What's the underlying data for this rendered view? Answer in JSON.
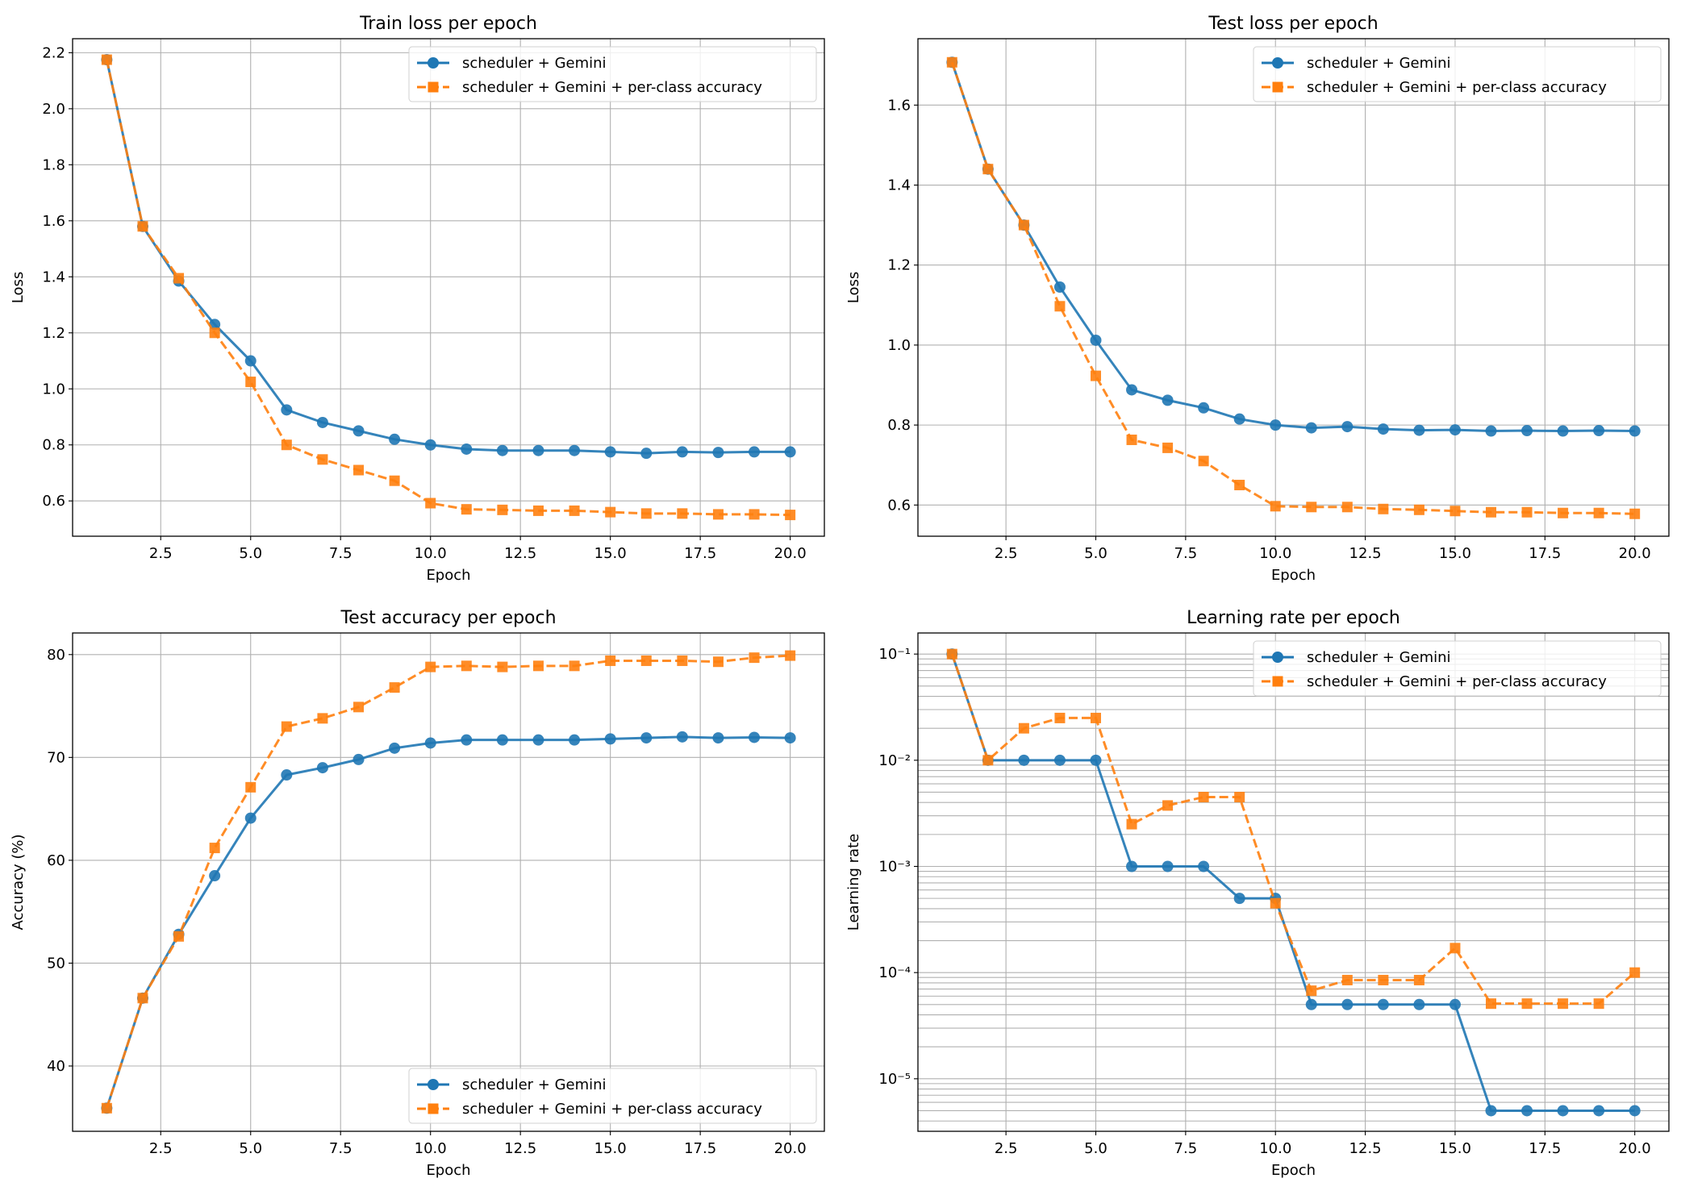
{
  "colors": {
    "series_1": "#1f77b4",
    "series_2": "#ff7f0e",
    "grid": "#b0b0b0"
  },
  "legend_labels": [
    "scheduler + Gemini",
    "scheduler + Gemini + per-class accuracy"
  ],
  "chart_data": [
    {
      "type": "line",
      "title": "Train loss per epoch",
      "xlabel": "Epoch",
      "ylabel": "Loss",
      "xlim": [
        0.05,
        20.95
      ],
      "ylim": [
        0.474,
        2.25
      ],
      "yscale": "linear",
      "xticks": [
        2.5,
        5.0,
        7.5,
        10.0,
        12.5,
        15.0,
        17.5,
        20.0
      ],
      "xtick_labels": [
        "2.5",
        "5.0",
        "7.5",
        "10.0",
        "12.5",
        "15.0",
        "17.5",
        "20.0"
      ],
      "yticks": [
        0.6,
        0.8,
        1.0,
        1.2,
        1.4,
        1.6,
        1.8,
        2.0,
        2.2
      ],
      "ytick_labels": [
        "0.6",
        "0.8",
        "1.0",
        "1.2",
        "1.4",
        "1.6",
        "1.8",
        "2.0",
        "2.2"
      ],
      "grid": true,
      "legend": "top-right",
      "x": [
        1,
        2,
        3,
        4,
        5,
        6,
        7,
        8,
        9,
        10,
        11,
        12,
        13,
        14,
        15,
        16,
        17,
        18,
        19,
        20
      ],
      "series": [
        {
          "name": "scheduler + Gemini",
          "marker": "circle",
          "style": "solid",
          "values": [
            2.175,
            1.58,
            1.385,
            1.23,
            1.1,
            0.925,
            0.88,
            0.85,
            0.82,
            0.8,
            0.785,
            0.78,
            0.78,
            0.78,
            0.775,
            0.77,
            0.775,
            0.773,
            0.775,
            0.775
          ]
        },
        {
          "name": "scheduler + Gemini + per-class accuracy",
          "marker": "square",
          "style": "dashed",
          "values": [
            2.175,
            1.58,
            1.395,
            1.2,
            1.025,
            0.8,
            0.748,
            0.71,
            0.672,
            0.592,
            0.57,
            0.568,
            0.565,
            0.565,
            0.56,
            0.555,
            0.555,
            0.552,
            0.552,
            0.55
          ]
        }
      ]
    },
    {
      "type": "line",
      "title": "Test loss per epoch",
      "xlabel": "Epoch",
      "ylabel": "Loss",
      "xlim": [
        0.05,
        20.95
      ],
      "ylim": [
        0.522,
        1.766
      ],
      "yscale": "linear",
      "xticks": [
        2.5,
        5.0,
        7.5,
        10.0,
        12.5,
        15.0,
        17.5,
        20.0
      ],
      "xtick_labels": [
        "2.5",
        "5.0",
        "7.5",
        "10.0",
        "12.5",
        "15.0",
        "17.5",
        "20.0"
      ],
      "yticks": [
        0.6,
        0.8,
        1.0,
        1.2,
        1.4,
        1.6
      ],
      "ytick_labels": [
        "0.6",
        "0.8",
        "1.0",
        "1.2",
        "1.4",
        "1.6"
      ],
      "grid": true,
      "legend": "top-right",
      "x": [
        1,
        2,
        3,
        4,
        5,
        6,
        7,
        8,
        9,
        10,
        11,
        12,
        13,
        14,
        15,
        16,
        17,
        18,
        19,
        20
      ],
      "series": [
        {
          "name": "scheduler + Gemini",
          "marker": "circle",
          "style": "solid",
          "values": [
            1.707,
            1.44,
            1.3,
            1.145,
            1.012,
            0.888,
            0.862,
            0.843,
            0.815,
            0.8,
            0.793,
            0.796,
            0.79,
            0.787,
            0.788,
            0.785,
            0.786,
            0.785,
            0.786,
            0.785
          ]
        },
        {
          "name": "scheduler + Gemini + per-class accuracy",
          "marker": "square",
          "style": "dashed",
          "values": [
            1.707,
            1.44,
            1.3,
            1.097,
            0.923,
            0.763,
            0.743,
            0.71,
            0.65,
            0.597,
            0.595,
            0.595,
            0.59,
            0.588,
            0.585,
            0.582,
            0.582,
            0.58,
            0.58,
            0.578
          ]
        }
      ]
    },
    {
      "type": "line",
      "title": "Test accuracy per epoch",
      "xlabel": "Epoch",
      "ylabel": "Accuracy (%)",
      "xlim": [
        0.05,
        20.95
      ],
      "ylim": [
        33.65,
        82.1
      ],
      "yscale": "linear",
      "xticks": [
        2.5,
        5.0,
        7.5,
        10.0,
        12.5,
        15.0,
        17.5,
        20.0
      ],
      "xtick_labels": [
        "2.5",
        "5.0",
        "7.5",
        "10.0",
        "12.5",
        "15.0",
        "17.5",
        "20.0"
      ],
      "yticks": [
        40,
        50,
        60,
        70,
        80
      ],
      "ytick_labels": [
        "40",
        "50",
        "60",
        "70",
        "80"
      ],
      "grid": true,
      "legend": "bottom-right",
      "x": [
        1,
        2,
        3,
        4,
        5,
        6,
        7,
        8,
        9,
        10,
        11,
        12,
        13,
        14,
        15,
        16,
        17,
        18,
        19,
        20
      ],
      "series": [
        {
          "name": "scheduler + Gemini",
          "marker": "circle",
          "style": "solid",
          "values": [
            35.9,
            46.6,
            52.8,
            58.5,
            64.1,
            68.3,
            69.0,
            69.8,
            70.9,
            71.4,
            71.7,
            71.7,
            71.7,
            71.7,
            71.8,
            71.9,
            72.0,
            71.9,
            71.95,
            71.9
          ]
        },
        {
          "name": "scheduler + Gemini + per-class accuracy",
          "marker": "square",
          "style": "dashed",
          "values": [
            35.9,
            46.6,
            52.6,
            61.2,
            67.1,
            73.0,
            73.8,
            74.9,
            76.8,
            78.8,
            78.9,
            78.8,
            78.9,
            78.9,
            79.4,
            79.4,
            79.4,
            79.3,
            79.7,
            79.9
          ]
        }
      ]
    },
    {
      "type": "line",
      "title": "Learning rate per epoch",
      "xlabel": "Epoch",
      "ylabel": "Learning rate",
      "xlim": [
        0.05,
        20.95
      ],
      "ylim": [
        3.2e-06,
        0.158
      ],
      "yscale": "log",
      "xticks": [
        2.5,
        5.0,
        7.5,
        10.0,
        12.5,
        15.0,
        17.5,
        20.0
      ],
      "xtick_labels": [
        "2.5",
        "5.0",
        "7.5",
        "10.0",
        "12.5",
        "15.0",
        "17.5",
        "20.0"
      ],
      "yticks": [
        1e-05,
        0.0001,
        0.001,
        0.01,
        0.1
      ],
      "ytick_labels": [
        "10⁻⁵",
        "10⁻⁴",
        "10⁻³",
        "10⁻²",
        "10⁻¹"
      ],
      "grid": true,
      "minor_grid": true,
      "legend": "top-right",
      "x": [
        1,
        2,
        3,
        4,
        5,
        6,
        7,
        8,
        9,
        10,
        11,
        12,
        13,
        14,
        15,
        16,
        17,
        18,
        19,
        20
      ],
      "series": [
        {
          "name": "scheduler + Gemini",
          "marker": "circle",
          "style": "solid",
          "values": [
            0.1,
            0.01,
            0.01,
            0.01,
            0.01,
            0.001,
            0.001,
            0.001,
            0.0005,
            0.0005,
            5e-05,
            5e-05,
            5e-05,
            5e-05,
            5e-05,
            5e-06,
            5e-06,
            5e-06,
            5e-06,
            5e-06
          ]
        },
        {
          "name": "scheduler + Gemini + per-class accuracy",
          "marker": "square",
          "style": "dashed",
          "values": [
            0.1,
            0.01,
            0.02,
            0.025,
            0.025,
            0.0025,
            0.00375,
            0.0045,
            0.0045,
            0.00045,
            6.75e-05,
            8.5e-05,
            8.5e-05,
            8.5e-05,
            0.00017,
            5.1e-05,
            5.1e-05,
            5.1e-05,
            5.1e-05,
            0.0001
          ]
        }
      ]
    }
  ]
}
